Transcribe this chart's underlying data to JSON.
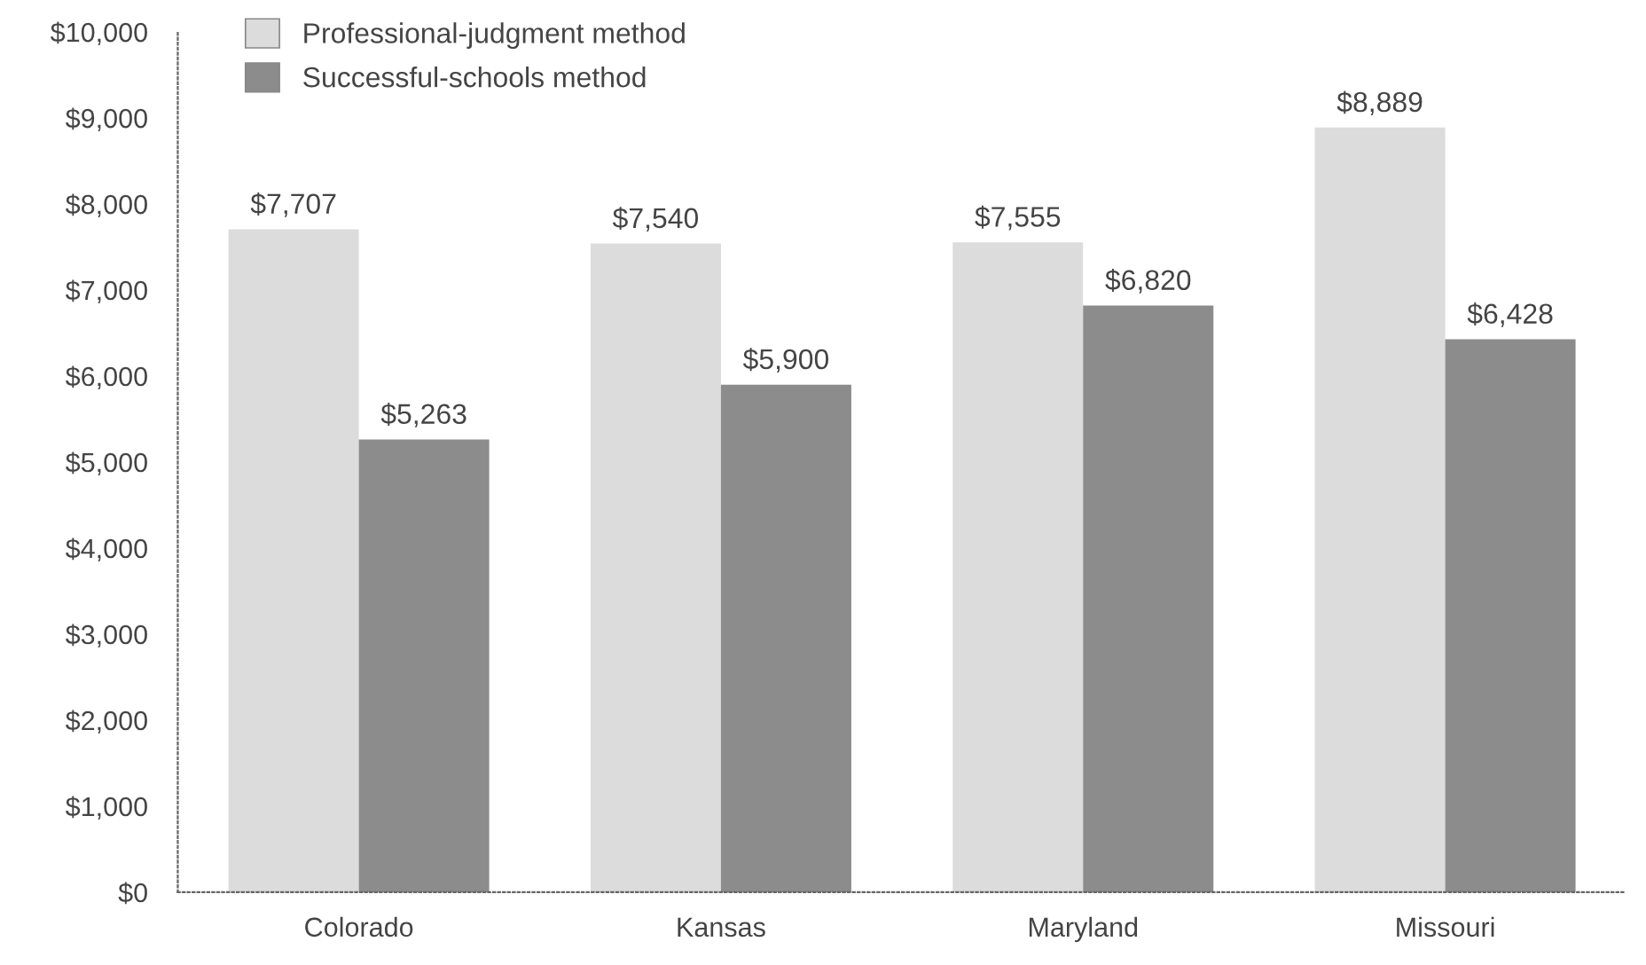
{
  "chart_data": {
    "type": "bar",
    "categories": [
      "Colorado",
      "Kansas",
      "Maryland",
      "Missouri"
    ],
    "series": [
      {
        "name": "Professional-judgment method",
        "color": "#dcdcdc",
        "values": [
          7707,
          7540,
          7555,
          8889
        ],
        "value_labels": [
          "$7,707",
          "$7,540",
          "$7,555",
          "$8,889"
        ]
      },
      {
        "name": "Successful-schools method",
        "color": "#8c8c8c",
        "values": [
          5263,
          5900,
          6820,
          6428
        ],
        "value_labels": [
          "$5,263",
          "$5,900",
          "$6,820",
          "$6,428"
        ]
      }
    ],
    "ylim": [
      0,
      10000
    ],
    "yticks": [
      {
        "value": 0,
        "label": "$0"
      },
      {
        "value": 1000,
        "label": "$1,000"
      },
      {
        "value": 2000,
        "label": "$2,000"
      },
      {
        "value": 3000,
        "label": "$3,000"
      },
      {
        "value": 4000,
        "label": "$4,000"
      },
      {
        "value": 5000,
        "label": "$5,000"
      },
      {
        "value": 6000,
        "label": "$6,000"
      },
      {
        "value": 7000,
        "label": "$7,000"
      },
      {
        "value": 8000,
        "label": "$8,000"
      },
      {
        "value": 9000,
        "label": "$9,000"
      },
      {
        "value": 10000,
        "label": "$10,000"
      }
    ],
    "legend": "top left",
    "grid": false
  }
}
